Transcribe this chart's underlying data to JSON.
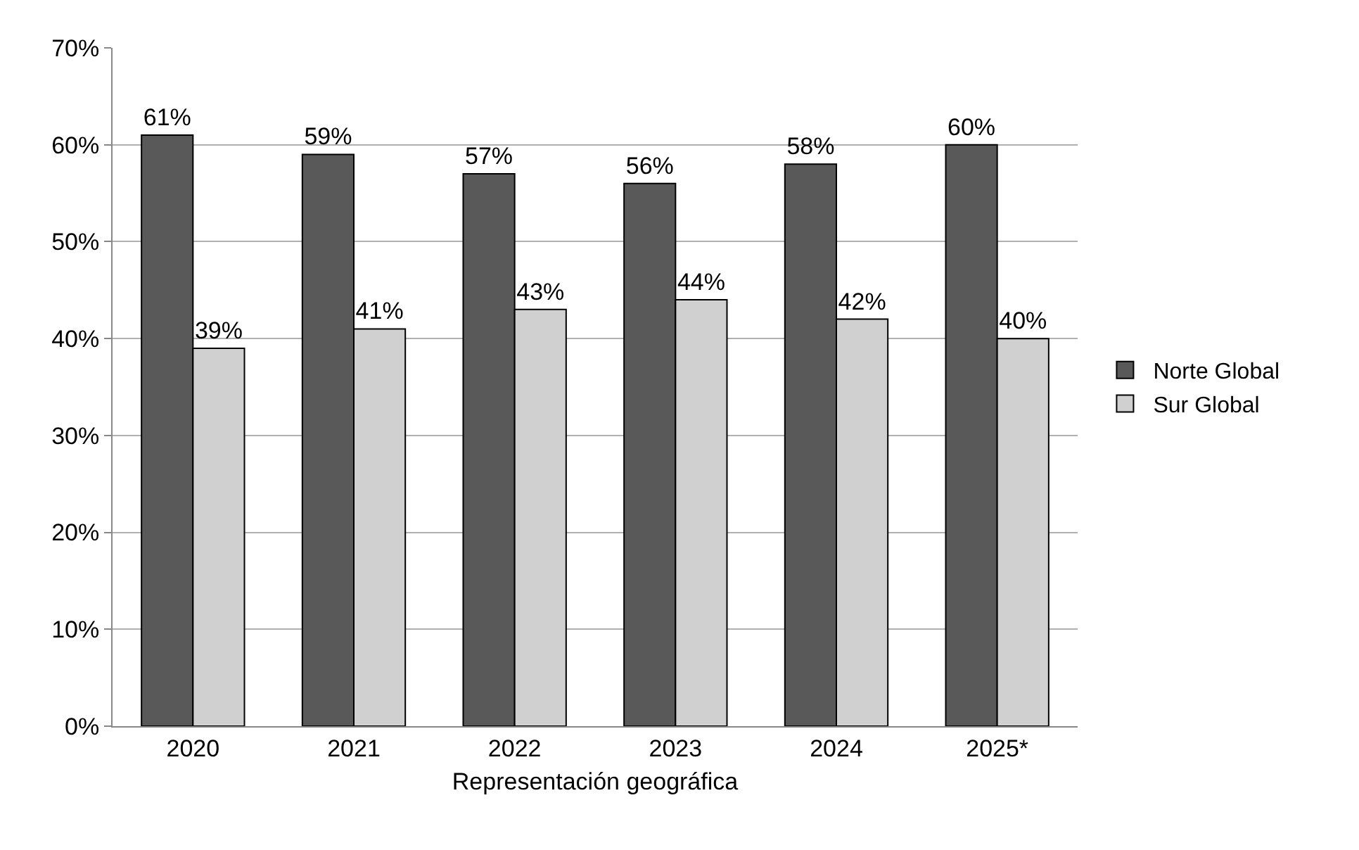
{
  "chart_data": {
    "type": "bar",
    "xlabel": "Representación geográfica",
    "categories": [
      "2020",
      "2021",
      "2022",
      "2023",
      "2024",
      "2025*"
    ],
    "series": [
      {
        "name": "Norte Global",
        "color": "#595959",
        "values": [
          61,
          59,
          57,
          56,
          58,
          60
        ],
        "value_labels": [
          "61%",
          "59%",
          "57%",
          "56%",
          "58%",
          "60%"
        ]
      },
      {
        "name": "Sur Global",
        "color": "#d0d0d0",
        "values": [
          39,
          41,
          43,
          44,
          42,
          40
        ],
        "value_labels": [
          "39%",
          "41%",
          "43%",
          "44%",
          "42%",
          "40%"
        ]
      }
    ],
    "ylim": [
      0,
      70
    ],
    "yticks": [
      {
        "value": 0,
        "label": "0%"
      },
      {
        "value": 10,
        "label": "10%"
      },
      {
        "value": 20,
        "label": "20%"
      },
      {
        "value": 30,
        "label": "30%"
      },
      {
        "value": 40,
        "label": "40%"
      },
      {
        "value": 50,
        "label": "50%"
      },
      {
        "value": 60,
        "label": "60%"
      },
      {
        "value": 70,
        "label": "70%"
      }
    ],
    "grid": "y",
    "legend": "right"
  }
}
